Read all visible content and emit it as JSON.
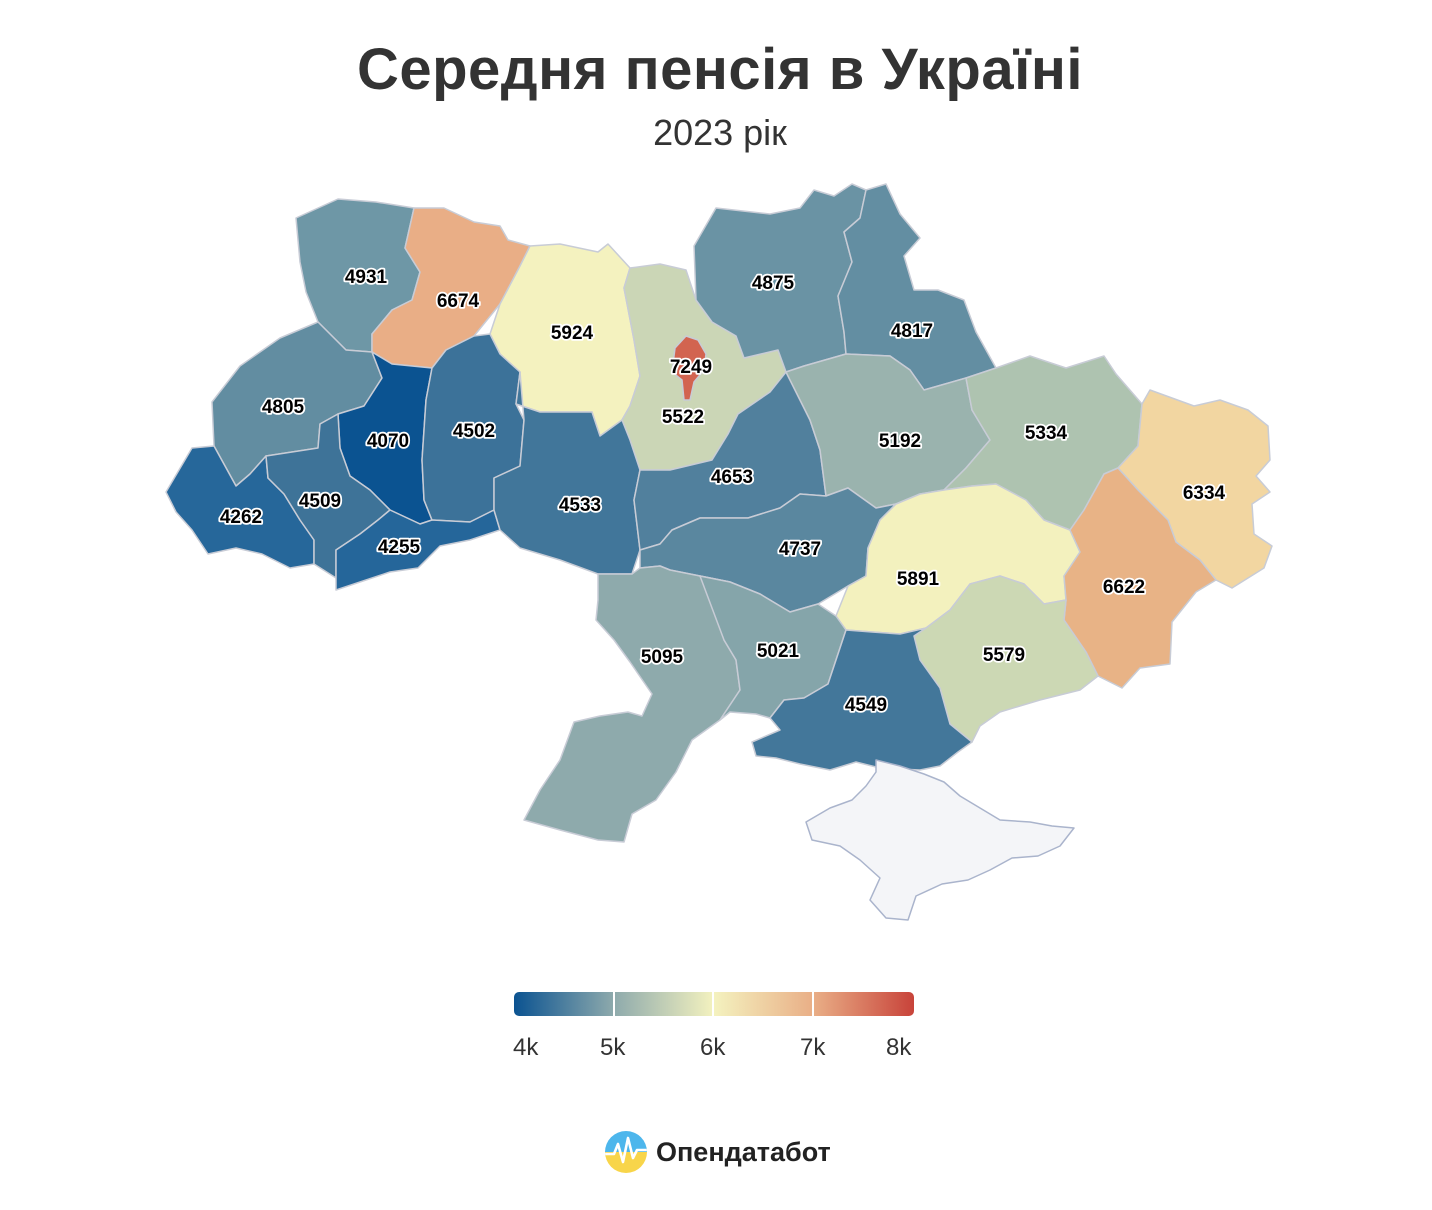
{
  "header": {
    "title": "Середня пенсія в Україні",
    "subtitle": "2023 рік"
  },
  "map": {
    "regions": [
      {
        "id": "volyn",
        "value": "4931",
        "color": "#6e97a6"
      },
      {
        "id": "rivne",
        "value": "6674",
        "color": "#e9ae86"
      },
      {
        "id": "zhytomyr",
        "value": "5924",
        "color": "#f4f2bf"
      },
      {
        "id": "kyiv-oblast",
        "value": "5522",
        "color": "#cbd6b6"
      },
      {
        "id": "kyiv-city",
        "value": "7249",
        "color": "#d26450"
      },
      {
        "id": "chernihiv",
        "value": "4875",
        "color": "#6a93a4"
      },
      {
        "id": "sumy",
        "value": "4817",
        "color": "#638ea2"
      },
      {
        "id": "lviv",
        "value": "4805",
        "color": "#628da1"
      },
      {
        "id": "ternopil",
        "value": "4070",
        "color": "#0b5391"
      },
      {
        "id": "khmelnytskyi",
        "value": "4502",
        "color": "#3c7299"
      },
      {
        "id": "zakarpattia",
        "value": "4262",
        "color": "#26679a"
      },
      {
        "id": "ivano-frankivsk",
        "value": "4509",
        "color": "#3e7398"
      },
      {
        "id": "chernivtsi",
        "value": "4255",
        "color": "#25669a"
      },
      {
        "id": "vinnytsia",
        "value": "4533",
        "color": "#41769a"
      },
      {
        "id": "cherkasy",
        "value": "4653",
        "color": "#51809d"
      },
      {
        "id": "poltava",
        "value": "5192",
        "color": "#9ab3ae"
      },
      {
        "id": "kharkiv",
        "value": "5334",
        "color": "#aec3b0"
      },
      {
        "id": "luhansk",
        "value": "6334",
        "color": "#f2d6a1"
      },
      {
        "id": "kirovohrad",
        "value": "4737",
        "color": "#5a879f"
      },
      {
        "id": "dnipropetrovsk",
        "value": "5891",
        "color": "#f3f1be"
      },
      {
        "id": "donetsk",
        "value": "6622",
        "color": "#e8b386"
      },
      {
        "id": "odesa",
        "value": "5095",
        "color": "#8eaaac"
      },
      {
        "id": "mykolaiv",
        "value": "5021",
        "color": "#85a5aa"
      },
      {
        "id": "zaporizhzhia",
        "value": "5579",
        "color": "#ccd8b4"
      },
      {
        "id": "kherson",
        "value": "4549",
        "color": "#43779a"
      },
      {
        "id": "crimea",
        "value": "",
        "color": "#f4f5f8"
      }
    ]
  },
  "legend": {
    "ticks": [
      "4k",
      "5k",
      "6k",
      "7k",
      "8k"
    ],
    "gradient": [
      "#0b5391",
      "#8eaaac",
      "#f4f2bf",
      "#e9ae86",
      "#c8433a"
    ]
  },
  "footer": {
    "brand": "Опендатабот"
  }
}
